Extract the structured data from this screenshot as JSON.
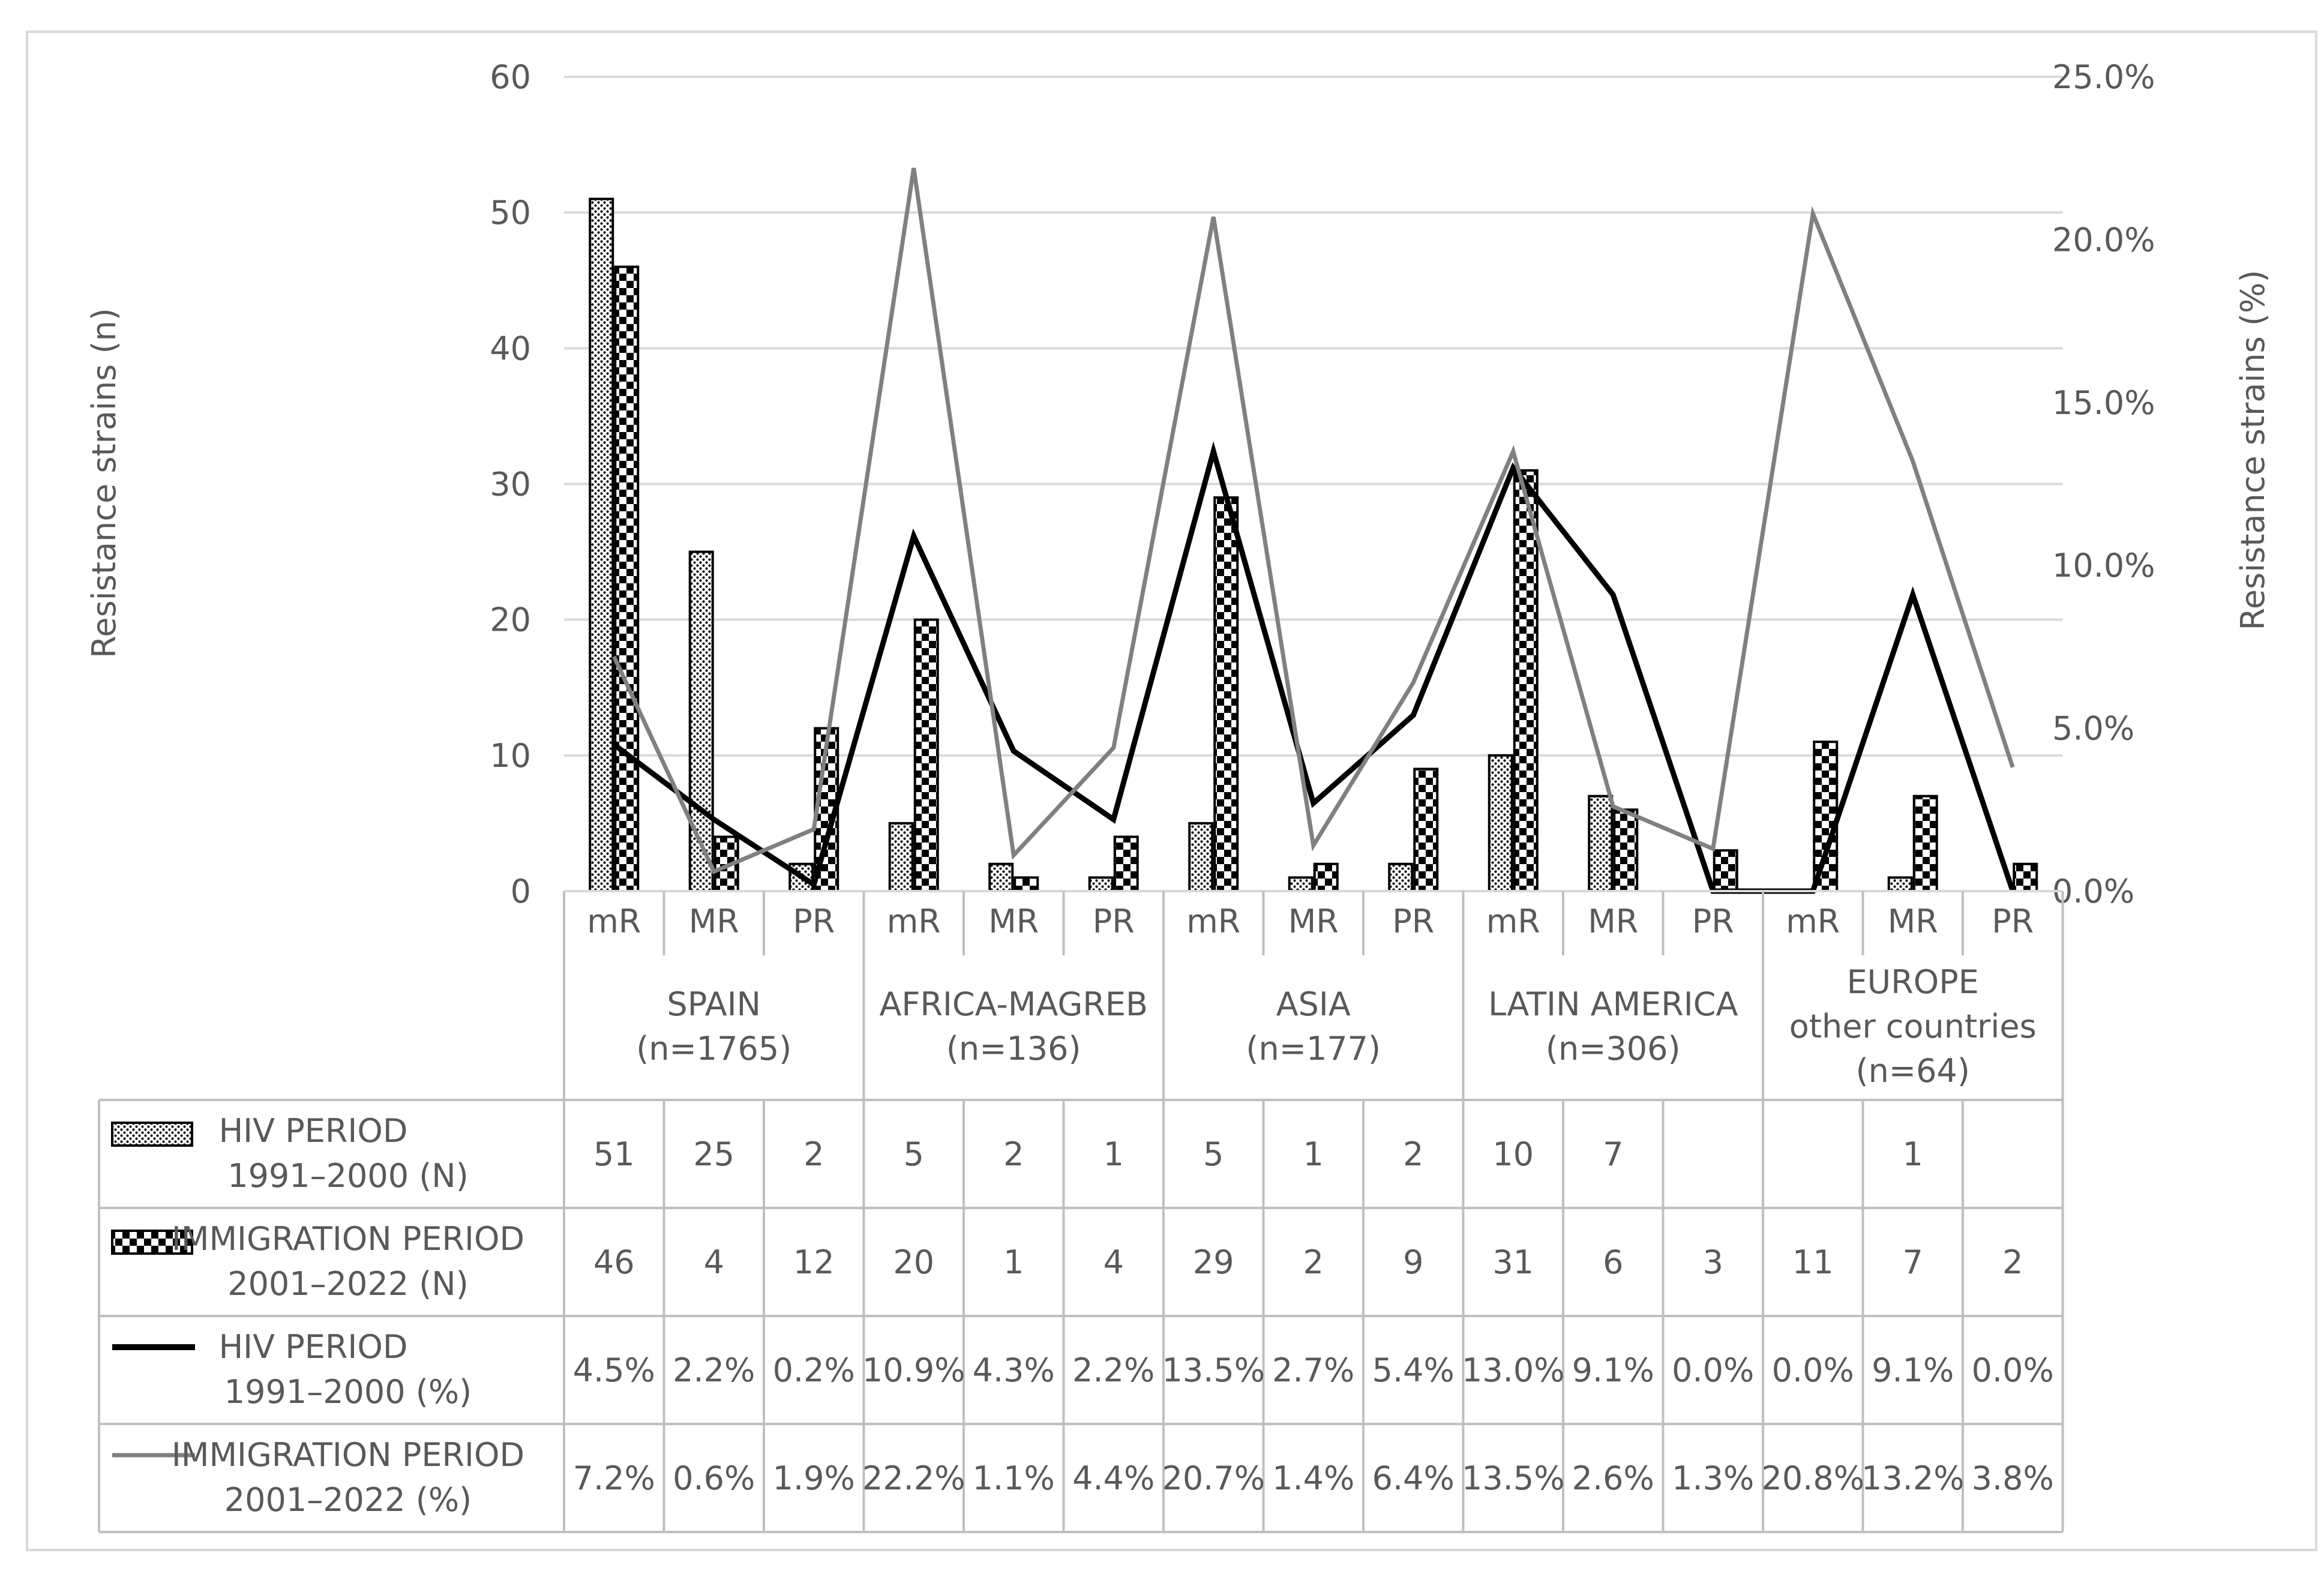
{
  "chart_data": {
    "type": "bar+line",
    "ylabel_left": "Resistance strains (n)",
    "ylabel_right": "Resistance strains (%)",
    "ylim_left": [
      0,
      60
    ],
    "ylim_right": [
      0,
      25
    ],
    "yticks_left": [
      "0",
      "10",
      "20",
      "30",
      "40",
      "50",
      "60"
    ],
    "yticks_right": [
      "0.0%",
      "5.0%",
      "10.0%",
      "15.0%",
      "20.0%",
      "25.0%"
    ],
    "grid": true,
    "subcategories": [
      "mR",
      "MR",
      "PR",
      "mR",
      "MR",
      "PR",
      "mR",
      "MR",
      "PR",
      "mR",
      "MR",
      "PR",
      "mR",
      "MR",
      "PR"
    ],
    "groups": [
      {
        "line1": "SPAIN",
        "line2": "(n=1765)",
        "line3": ""
      },
      {
        "line1": "AFRICA-MAGREB",
        "line2": "(n=136)",
        "line3": ""
      },
      {
        "line1": "ASIA",
        "line2": "(n=177)",
        "line3": ""
      },
      {
        "line1": "LATIN AMERICA",
        "line2": "(n=306)",
        "line3": ""
      },
      {
        "line1": "EUROPE",
        "line2": "other countries",
        "line3": "(n=64)"
      }
    ],
    "series": [
      {
        "name_line1": "HIV PERIOD",
        "name_line2": "1991–2000 (N)",
        "kind": "bar",
        "pattern": "dots",
        "values": [
          51,
          25,
          2,
          5,
          2,
          1,
          5,
          1,
          2,
          10,
          7,
          null,
          null,
          1,
          null
        ],
        "labels": [
          "51",
          "25",
          "2",
          "5",
          "2",
          "1",
          "5",
          "1",
          "2",
          "10",
          "7",
          "",
          "",
          "1",
          ""
        ]
      },
      {
        "name_line1": "IMMIGRATION PERIOD",
        "name_line2": "2001–2022 (N)",
        "kind": "bar",
        "pattern": "checker",
        "values": [
          46,
          4,
          12,
          20,
          1,
          4,
          29,
          2,
          9,
          31,
          6,
          3,
          11,
          7,
          2
        ],
        "labels": [
          "46",
          "4",
          "12",
          "20",
          "1",
          "4",
          "29",
          "2",
          "9",
          "31",
          "6",
          "3",
          "11",
          "7",
          "2"
        ]
      },
      {
        "name_line1": "HIV PERIOD",
        "name_line2": "1991–2000 (%)",
        "kind": "line",
        "color": "#000000",
        "values": [
          4.5,
          2.2,
          0.2,
          10.9,
          4.3,
          2.2,
          13.5,
          2.7,
          5.4,
          13.0,
          9.1,
          0.0,
          0.0,
          9.1,
          0.0
        ],
        "labels": [
          "4.5%",
          "2.2%",
          "0.2%",
          "10.9%",
          "4.3%",
          "2.2%",
          "13.5%",
          "2.7%",
          "5.4%",
          "13.0%",
          "9.1%",
          "0.0%",
          "0.0%",
          "9.1%",
          "0.0%"
        ]
      },
      {
        "name_line1": "IMMIGRATION PERIOD",
        "name_line2": "2001–2022 (%)",
        "kind": "line",
        "color": "#808080",
        "values": [
          7.2,
          0.6,
          1.9,
          22.2,
          1.1,
          4.4,
          20.7,
          1.4,
          6.4,
          13.5,
          2.6,
          1.3,
          20.8,
          13.2,
          3.8
        ],
        "labels": [
          "7.2%",
          "0.6%",
          "1.9%",
          "22.2%",
          "1.1%",
          "4.4%",
          "20.7%",
          "1.4%",
          "6.4%",
          "13.5%",
          "2.6%",
          "1.3%",
          "20.8%",
          "13.2%",
          "3.8%"
        ]
      }
    ]
  }
}
